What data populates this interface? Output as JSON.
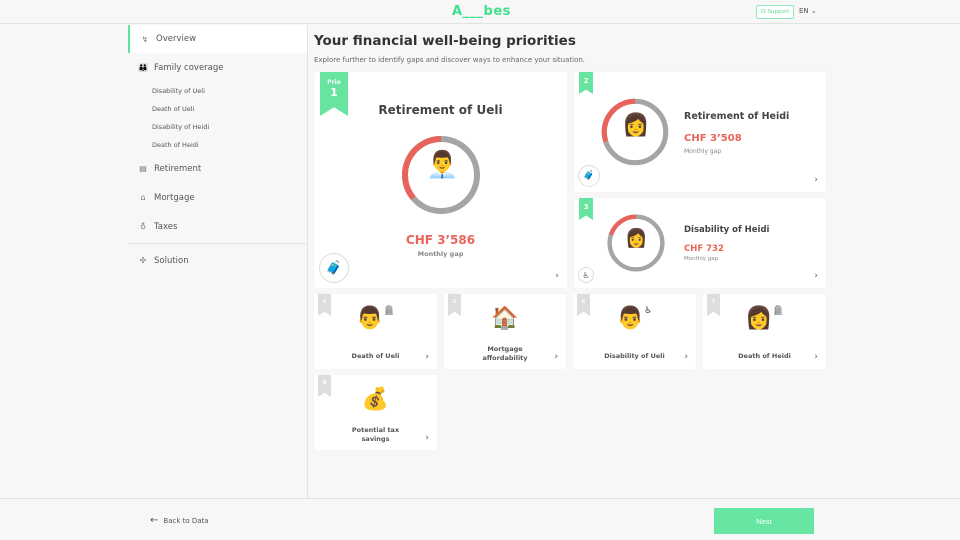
{
  "header": {
    "logo": "A___bes",
    "support": "Support",
    "language": "EN"
  },
  "sidebar": {
    "items": [
      {
        "label": "Overview",
        "icon": "chart-icon",
        "active": true
      },
      {
        "label": "Family coverage",
        "icon": "family-icon"
      },
      {
        "label": "Retirement",
        "icon": "suitcase-icon"
      },
      {
        "label": "Mortgage",
        "icon": "house-icon"
      },
      {
        "label": "Taxes",
        "icon": "money-bag-icon"
      },
      {
        "label": "Solution",
        "icon": "puzzle-icon"
      }
    ],
    "subitems": [
      "Disability of Ueli",
      "Death of Ueli",
      "Disability of Heidi",
      "Death of Heidi"
    ]
  },
  "main": {
    "title": "Your financial well-being priorities",
    "subtitle": "Explore further to identify gaps and discover ways to enhance your situation.",
    "featured": {
      "prio_label": "Prio",
      "rank": "1",
      "title": "Retirement of Ueli",
      "amount": "CHF 3’586",
      "gap_label": "Monthly gap",
      "gap_fraction": 0.36,
      "accent": "#e8645a"
    },
    "secondary": [
      {
        "rank": "2",
        "title": "Retirement of Heidi",
        "amount": "CHF 3’508",
        "gap_label": "Monthly gap",
        "gap_fraction": 0.3
      },
      {
        "rank": "3",
        "title": "Disability of Heidi",
        "amount": "CHF 732",
        "gap_label": "Monthly gap",
        "gap_fraction": 0.2
      }
    ],
    "others": [
      {
        "rank": "4",
        "label": "Death of Ueli"
      },
      {
        "rank": "5",
        "label": "Mortgage affordability"
      },
      {
        "rank": "6",
        "label": "Disability of Ueli"
      },
      {
        "rank": "7",
        "label": "Death of Heidi"
      },
      {
        "rank": "8",
        "label": "Potential tax savings"
      }
    ]
  },
  "footer": {
    "back": "Back to Data",
    "next": "Next"
  }
}
